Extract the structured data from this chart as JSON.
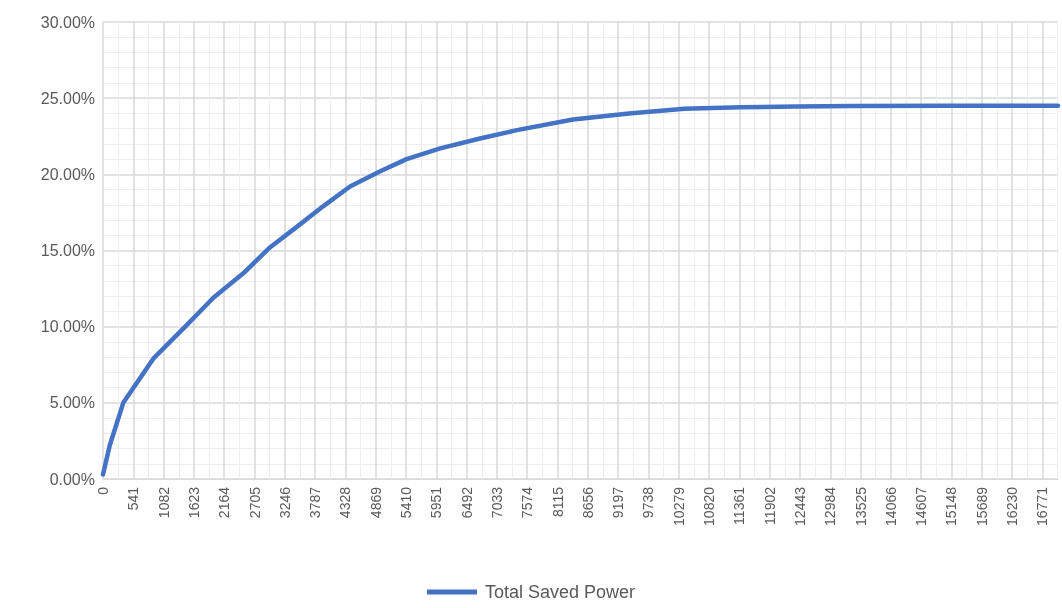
{
  "chart_data": {
    "type": "line",
    "x": [
      0,
      120,
      362,
      898,
      1494,
      1970,
      2505,
      2980,
      3460,
      3930,
      4410,
      4950,
      5420,
      6020,
      6730,
      7390,
      8390,
      9390,
      10380,
      11380,
      12370,
      13400,
      15000,
      17050
    ],
    "series": [
      {
        "name": "Total Saved Power",
        "color": "#4472c4",
        "values": [
          0.3,
          2.2,
          5.0,
          7.9,
          10.1,
          11.9,
          13.5,
          15.2,
          16.55,
          17.9,
          19.2,
          20.2,
          21.0,
          21.7,
          22.35,
          22.9,
          23.6,
          24.0,
          24.3,
          24.4,
          24.45,
          24.48,
          24.5,
          24.5
        ]
      }
    ],
    "xlim": [
      0,
      17050
    ],
    "xticks": [
      0,
      541,
      1082,
      1623,
      2164,
      2705,
      3246,
      3787,
      4328,
      4869,
      5410,
      5951,
      6492,
      7033,
      7574,
      8115,
      8656,
      9197,
      9738,
      10279,
      10820,
      11361,
      11902,
      12443,
      12984,
      13525,
      14066,
      14607,
      15148,
      15689,
      16230,
      16771
    ],
    "ylim": [
      0,
      30
    ],
    "yticks": [
      {
        "value": 0,
        "label": "0.00%"
      },
      {
        "value": 5,
        "label": "5.00%"
      },
      {
        "value": 10,
        "label": "10.00%"
      },
      {
        "value": 15,
        "label": "15.00%"
      },
      {
        "value": 20,
        "label": "20.00%"
      },
      {
        "value": 25,
        "label": "25.00%"
      },
      {
        "value": 30,
        "label": "30.00%"
      }
    ],
    "grid": true,
    "legend": "bottom",
    "marker": "none",
    "line_style": "solid"
  }
}
